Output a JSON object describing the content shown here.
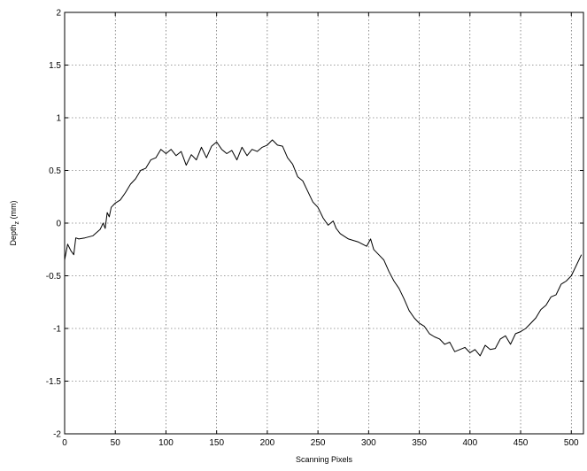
{
  "chart_data": {
    "type": "line",
    "title": "",
    "xlabel": "Scanning Pixels",
    "ylabel": "Depth",
    "ylabel_subscript": "z",
    "ylabel_unit": "(mm)",
    "xlim": [
      0,
      512
    ],
    "ylim": [
      -2,
      2
    ],
    "x_ticks": [
      0,
      50,
      100,
      150,
      200,
      250,
      300,
      350,
      400,
      450,
      500
    ],
    "y_ticks": [
      -2,
      -1.5,
      -1,
      -0.5,
      0,
      0.5,
      1,
      1.5,
      2
    ],
    "grid": true,
    "legend": "none",
    "series": [
      {
        "color": "#000000",
        "x": [
          0,
          3,
          6,
          9,
          11,
          14,
          20,
          28,
          35,
          38,
          40,
          42,
          44,
          46,
          50,
          55,
          60,
          65,
          70,
          75,
          80,
          85,
          90,
          95,
          100,
          105,
          110,
          115,
          120,
          125,
          130,
          135,
          140,
          145,
          150,
          155,
          160,
          165,
          170,
          175,
          180,
          185,
          190,
          195,
          200,
          205,
          210,
          215,
          220,
          225,
          230,
          235,
          240,
          245,
          250,
          255,
          260,
          265,
          268,
          272,
          280,
          290,
          298,
          302,
          305,
          310,
          315,
          320,
          325,
          330,
          335,
          340,
          345,
          350,
          355,
          360,
          365,
          370,
          375,
          380,
          385,
          390,
          395,
          400,
          405,
          410,
          415,
          420,
          425,
          430,
          435,
          440,
          445,
          450,
          455,
          460,
          465,
          470,
          475,
          480,
          485,
          490,
          495,
          500,
          505,
          510
        ],
        "y": [
          -0.35,
          -0.2,
          -0.26,
          -0.3,
          -0.14,
          -0.15,
          -0.14,
          -0.12,
          -0.06,
          0.0,
          -0.05,
          0.1,
          0.06,
          0.15,
          0.19,
          0.22,
          0.29,
          0.37,
          0.42,
          0.5,
          0.52,
          0.6,
          0.62,
          0.7,
          0.66,
          0.7,
          0.64,
          0.68,
          0.55,
          0.65,
          0.6,
          0.72,
          0.62,
          0.73,
          0.77,
          0.7,
          0.66,
          0.69,
          0.6,
          0.72,
          0.64,
          0.7,
          0.68,
          0.72,
          0.74,
          0.79,
          0.74,
          0.73,
          0.62,
          0.56,
          0.44,
          0.4,
          0.3,
          0.2,
          0.15,
          0.05,
          -0.02,
          0.02,
          -0.05,
          -0.1,
          -0.15,
          -0.18,
          -0.22,
          -0.15,
          -0.25,
          -0.3,
          -0.35,
          -0.46,
          -0.55,
          -0.62,
          -0.72,
          -0.83,
          -0.9,
          -0.95,
          -0.98,
          -1.05,
          -1.08,
          -1.1,
          -1.15,
          -1.13,
          -1.22,
          -1.2,
          -1.18,
          -1.23,
          -1.2,
          -1.26,
          -1.16,
          -1.2,
          -1.19,
          -1.1,
          -1.07,
          -1.15,
          -1.05,
          -1.03,
          -1.0,
          -0.95,
          -0.9,
          -0.82,
          -0.78,
          -0.7,
          -0.68,
          -0.58,
          -0.55,
          -0.5,
          -0.4,
          -0.3
        ]
      }
    ]
  }
}
